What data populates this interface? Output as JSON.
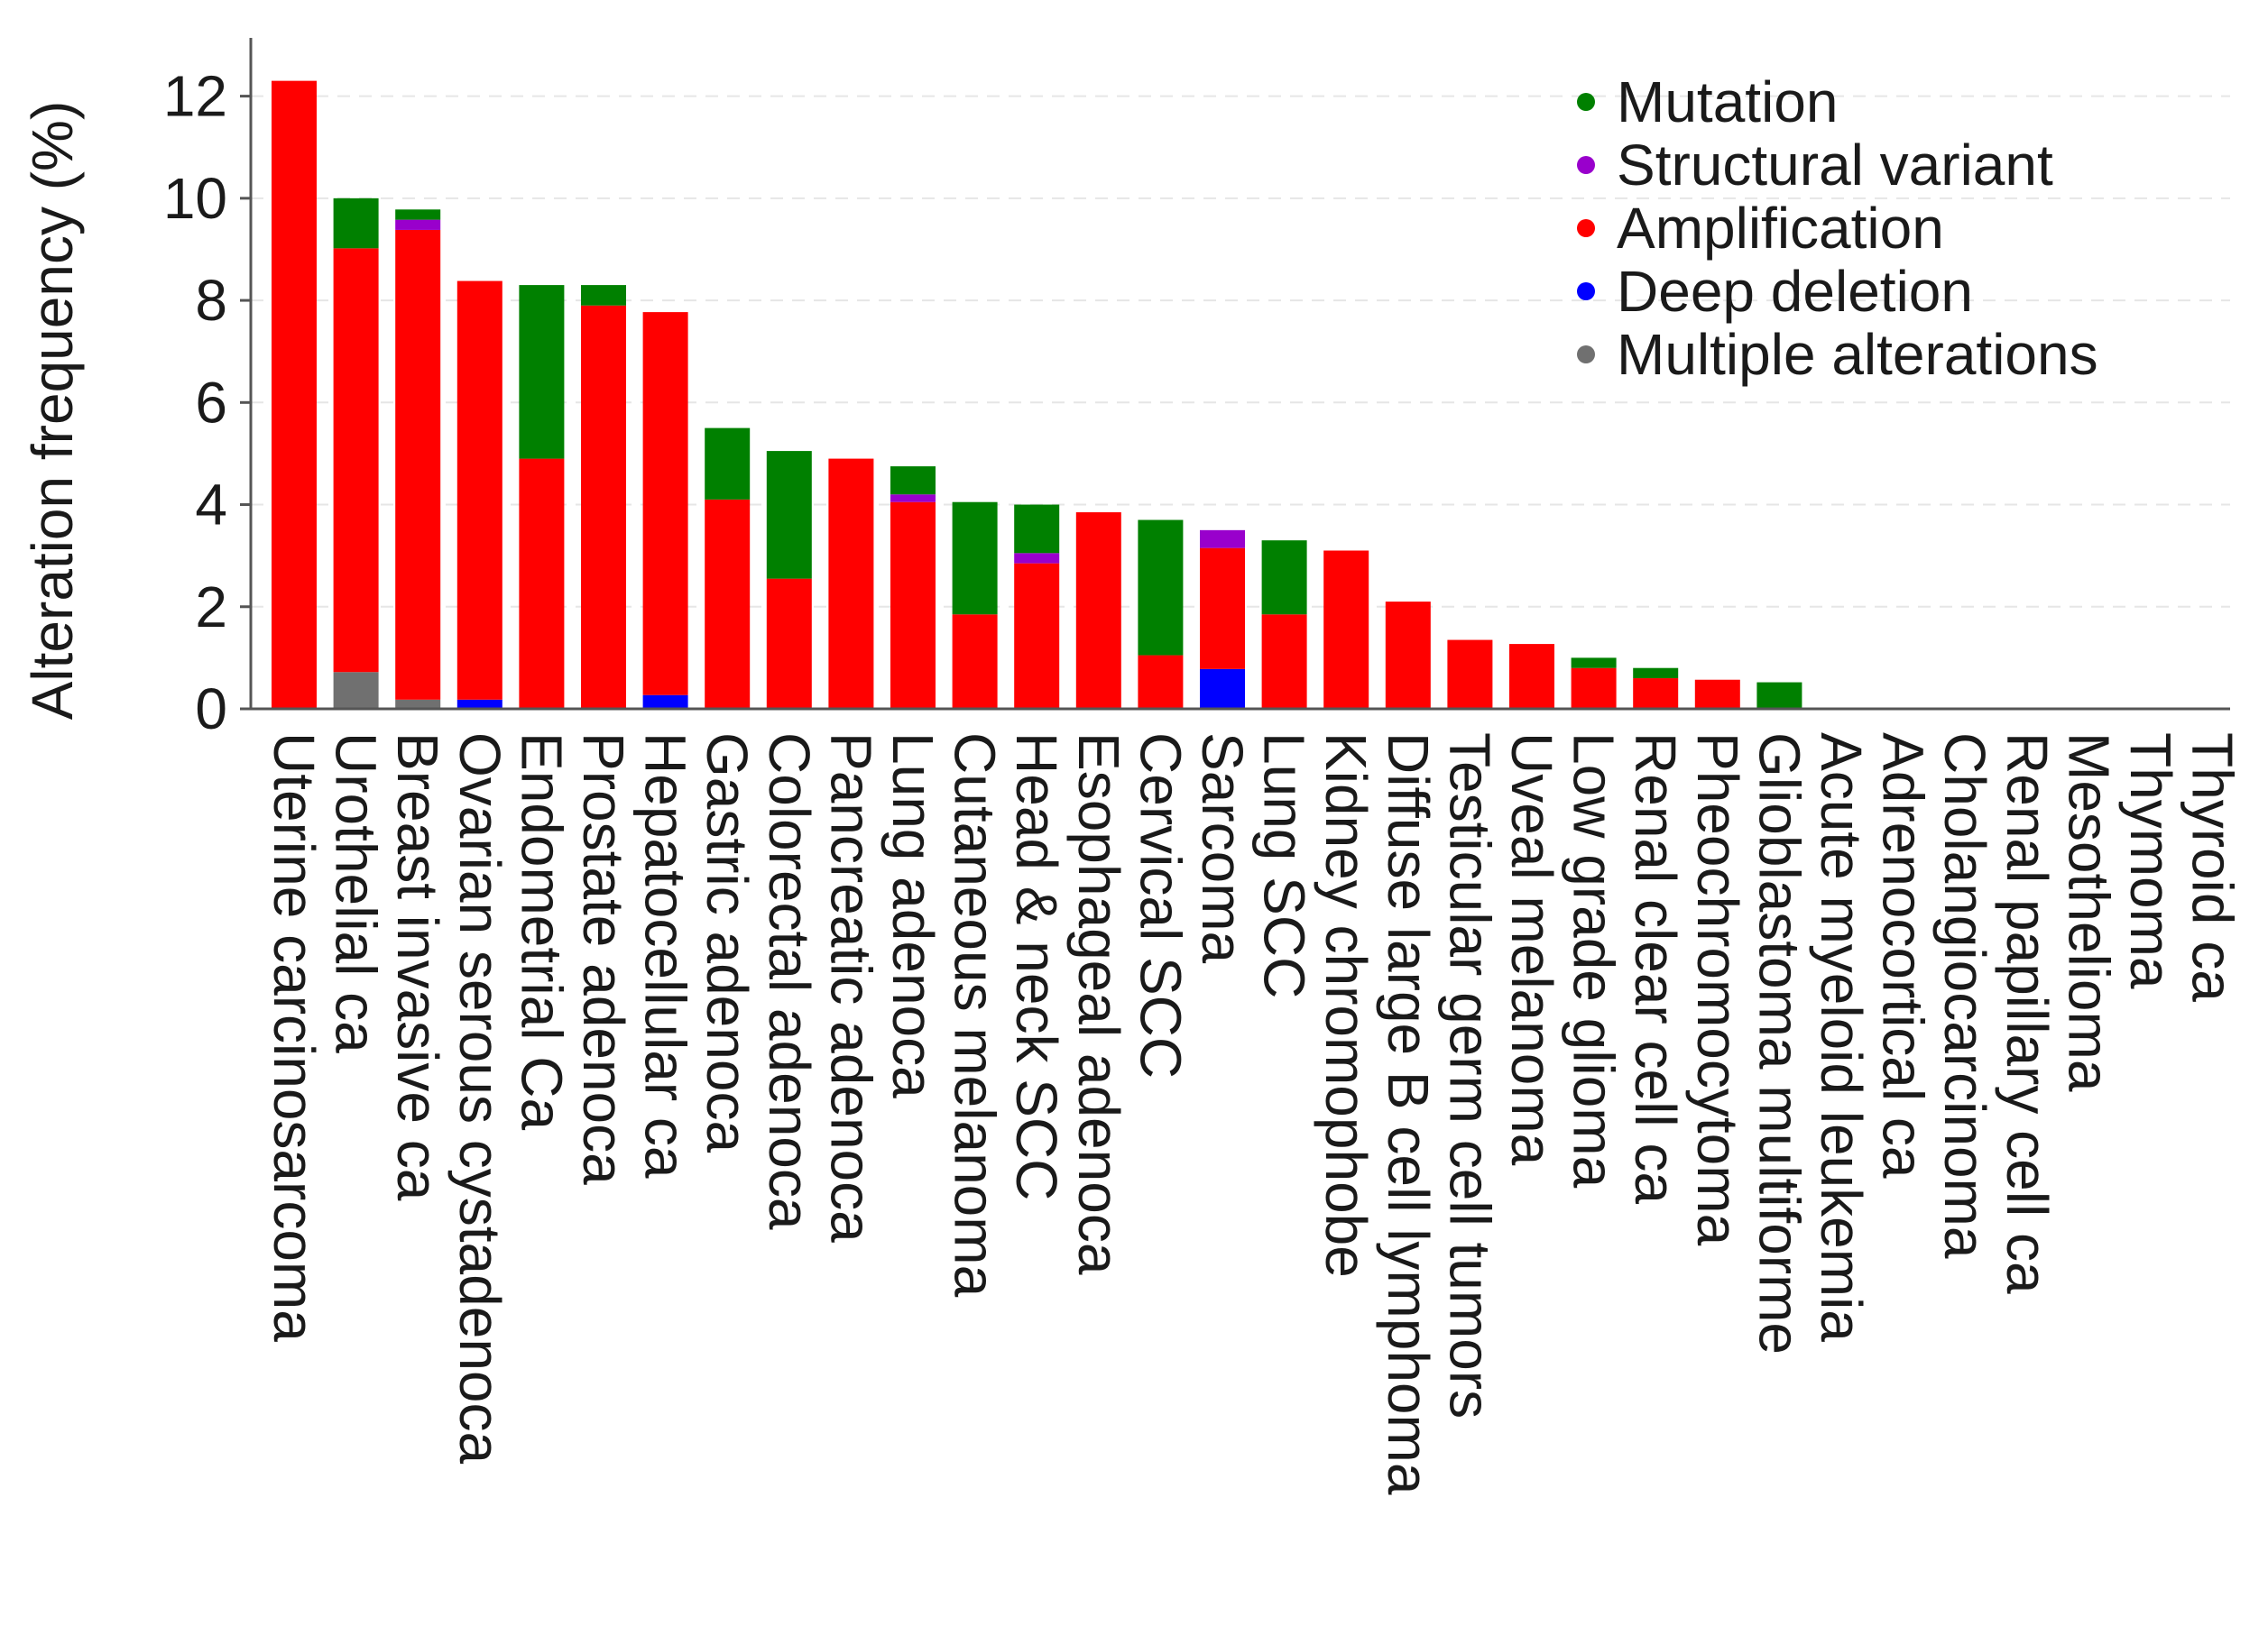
{
  "chart_data": {
    "type": "bar",
    "stacked": true,
    "title": "",
    "xlabel": "",
    "ylabel": "Alteration frequency (%)",
    "ylim": [
      0,
      13
    ],
    "yticks": [
      0,
      2,
      4,
      6,
      8,
      10,
      12
    ],
    "grid": true,
    "legend_position": "top-right",
    "categories": [
      "Uterine carcinosarcoma",
      "Urothelial ca",
      "Breast invasive ca",
      "Ovarian serous cystadenoca",
      "Endometrial Ca",
      "Prostate adenoca",
      "Hepatocellular ca",
      "Gastric adenoca",
      "Colorectal adenoca",
      "Pancreatic adenoca",
      "Lung adenoca",
      "Cutaneous melanoma",
      "Head & neck SCC",
      "Esophageal adenoca",
      "Cervical SCC",
      "Sarcoma",
      "Lung SCC",
      "Kidney chromophobe",
      "Diffuse large B cell lymphoma",
      "Testicular germ cell tumors",
      "Uveal melanoma",
      "Low grade glioma",
      "Renal clear cell ca",
      "Pheochromocytoma",
      "Glioblastoma multiforme",
      "Acute myeloid leukemia",
      "Adrenocortical ca",
      "Cholangiocarcinoma",
      "Renal papillary cell ca",
      "Mesothelioma",
      "Thymoma",
      "Thyroid ca"
    ],
    "series": [
      {
        "name": "Multiple alterations",
        "color": "#707070",
        "values": [
          0,
          0.72,
          0.18,
          0,
          0,
          0,
          0,
          0,
          0,
          0,
          0,
          0,
          0,
          0,
          0,
          0,
          0,
          0,
          0,
          0,
          0,
          0,
          0,
          0,
          0,
          0,
          0,
          0,
          0,
          0,
          0,
          0
        ]
      },
      {
        "name": "Deep deletion",
        "color": "#0000ff",
        "values": [
          0,
          0,
          0,
          0.18,
          0,
          0,
          0.27,
          0,
          0,
          0,
          0,
          0,
          0,
          0,
          0,
          0.78,
          0,
          0,
          0,
          0,
          0,
          0,
          0,
          0,
          0,
          0,
          0,
          0,
          0,
          0,
          0,
          0
        ]
      },
      {
        "name": "Amplification",
        "color": "#ff0000",
        "values": [
          12.3,
          8.3,
          9.2,
          8.2,
          4.9,
          7.9,
          7.5,
          4.1,
          2.55,
          4.9,
          4.05,
          1.85,
          2.85,
          3.85,
          1.05,
          2.37,
          1.85,
          3.1,
          2.1,
          1.35,
          1.27,
          0.8,
          0.6,
          0.57,
          0,
          0,
          0,
          0,
          0,
          0,
          0,
          0
        ]
      },
      {
        "name": "Structural variant",
        "color": "#9900cc",
        "values": [
          0,
          0,
          0.2,
          0,
          0,
          0,
          0,
          0,
          0,
          0,
          0.15,
          0,
          0.2,
          0,
          0,
          0.35,
          0,
          0,
          0,
          0,
          0,
          0,
          0,
          0,
          0,
          0,
          0,
          0,
          0,
          0,
          0,
          0
        ]
      },
      {
        "name": "Mutation",
        "color": "#008000",
        "values": [
          0,
          0.98,
          0.2,
          0,
          3.4,
          0.4,
          0,
          1.4,
          2.5,
          0,
          0.55,
          2.2,
          0.95,
          0,
          2.65,
          0,
          1.45,
          0,
          0,
          0,
          0,
          0.2,
          0.2,
          0,
          0.52,
          0,
          0,
          0,
          0,
          0,
          0,
          0
        ]
      }
    ],
    "legend_order": [
      "Mutation",
      "Structural variant",
      "Amplification",
      "Deep deletion",
      "Multiple alterations"
    ]
  }
}
